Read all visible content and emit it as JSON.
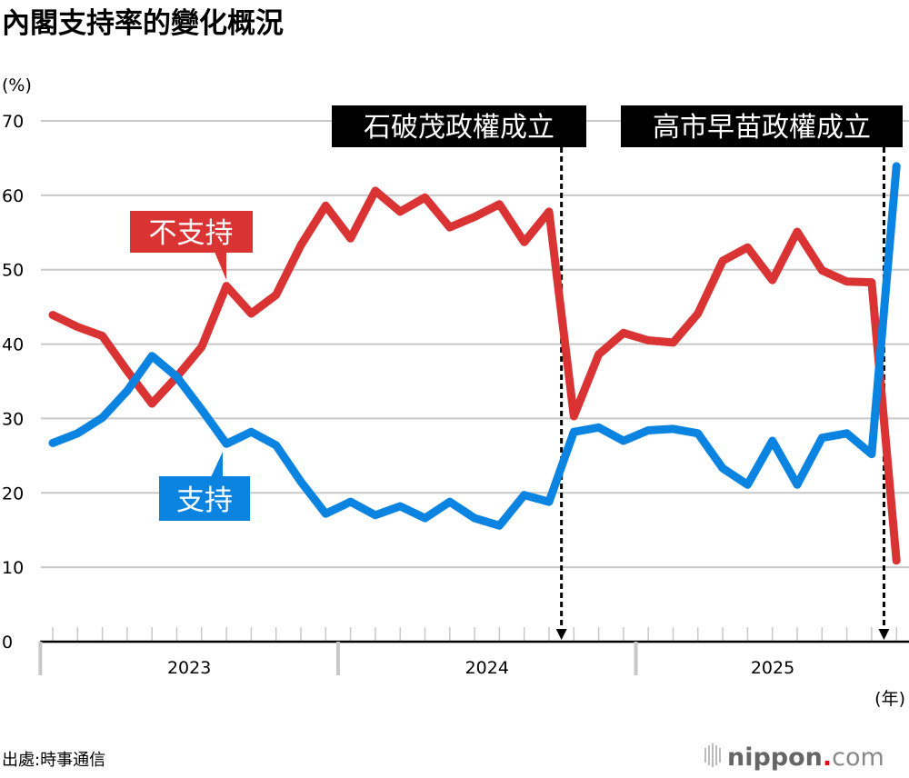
{
  "chart_data": {
    "type": "line",
    "title": "內閣支持率的變化概況",
    "ylabel": "(%)",
    "xlabel": "(年)",
    "ylim": [
      0,
      70
    ],
    "yticks": [
      0,
      10,
      20,
      30,
      40,
      50,
      60,
      70
    ],
    "grid": true,
    "year_labels": [
      "2023",
      "2024",
      "2025"
    ],
    "x": [
      "2023-01",
      "2023-02",
      "2023-03",
      "2023-04",
      "2023-05",
      "2023-06",
      "2023-07",
      "2023-08",
      "2023-09",
      "2023-10",
      "2023-11",
      "2023-12",
      "2024-01",
      "2024-02",
      "2024-03",
      "2024-04",
      "2024-05",
      "2024-06",
      "2024-07",
      "2024-08",
      "2024-09",
      "2024-10",
      "2024-11",
      "2024-12",
      "2025-01",
      "2025-02",
      "2025-03",
      "2025-04",
      "2025-05",
      "2025-06",
      "2025-07",
      "2025-08",
      "2025-09",
      "2025-10",
      "2025-11"
    ],
    "series": [
      {
        "name": "不支持",
        "color": "#d93333",
        "values": [
          43.9,
          42.3,
          41.1,
          36.4,
          32.0,
          35.6,
          39.6,
          47.8,
          44.1,
          46.6,
          53.3,
          58.6,
          54.2,
          60.6,
          57.8,
          59.7,
          55.7,
          57.1,
          58.8,
          53.7,
          57.8,
          30.3,
          38.6,
          41.5,
          40.5,
          40.2,
          44.1,
          51.2,
          53.0,
          48.6,
          55.1,
          49.9,
          48.4,
          48.3,
          10.9
        ]
      },
      {
        "name": "支持",
        "color": "#0a84e0",
        "values": [
          26.7,
          28.0,
          30.1,
          33.7,
          38.4,
          35.6,
          31.2,
          26.6,
          28.2,
          26.4,
          21.5,
          17.2,
          18.8,
          17.0,
          18.2,
          16.6,
          18.8,
          16.6,
          15.6,
          19.7,
          18.8,
          28.2,
          28.8,
          27.0,
          28.4,
          28.6,
          28.0,
          23.3,
          21.1,
          27.0,
          21.1,
          27.4,
          28.0,
          25.2,
          63.9
        ]
      }
    ],
    "events": [
      {
        "label": "石破茂政權成立",
        "date": "2024-10-01"
      },
      {
        "label": "高市早苗政權成立",
        "date": "2025-10-21"
      }
    ]
  },
  "footer": {
    "source": "出處:時事通信",
    "logo_main": "nippon",
    "logo_dot": ".",
    "logo_suffix": "com"
  }
}
